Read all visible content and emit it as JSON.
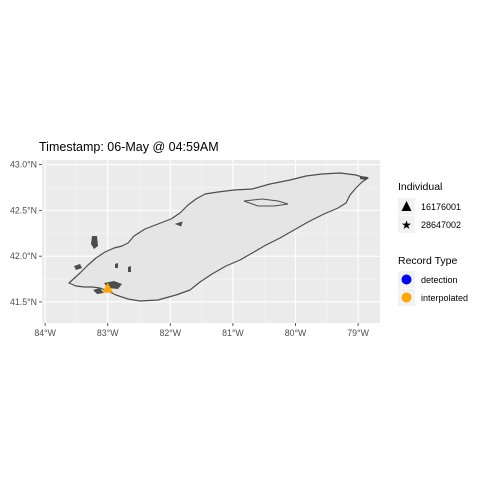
{
  "title": "Timestamp: 06-May @ 04:59AM",
  "chart_data": {
    "type": "map",
    "title": "Timestamp: 06-May @ 04:59AM",
    "xlim": [
      -84.05,
      -78.65
    ],
    "ylim": [
      41.27,
      43.05
    ],
    "x_ticks": [
      {
        "value": -84,
        "label": "84°W"
      },
      {
        "value": -83,
        "label": "83°W"
      },
      {
        "value": -82,
        "label": "82°W"
      },
      {
        "value": -81,
        "label": "81°W"
      },
      {
        "value": -80,
        "label": "80°W"
      },
      {
        "value": -79,
        "label": "79°W"
      }
    ],
    "y_ticks": [
      {
        "value": 43.0,
        "label": "43.0°N"
      },
      {
        "value": 42.5,
        "label": "42.5°N"
      },
      {
        "value": 42.0,
        "label": "42.0°N"
      },
      {
        "value": 41.5,
        "label": "41.5°N"
      }
    ],
    "grid": true,
    "panel_color": "#ebebeb",
    "lake_fill": "#e5e5e5",
    "shoreline_color": "#4d4d4d",
    "points": [
      {
        "lon": -83.0,
        "lat": 41.65,
        "individual": "16176001",
        "record_type": "interpolated",
        "shape": "triangle",
        "color": "#ffa500"
      }
    ],
    "legends": [
      {
        "title": "Individual",
        "items": [
          {
            "label": "16176001",
            "shape": "triangle",
            "color": "#000000"
          },
          {
            "label": "28647002",
            "shape": "star",
            "color": "#000000"
          }
        ]
      },
      {
        "title": "Record Type",
        "items": [
          {
            "label": "detection",
            "shape": "circle",
            "color": "#0000ff"
          },
          {
            "label": "interpolated",
            "shape": "circle",
            "color": "#ffa500"
          }
        ]
      }
    ],
    "legend_position": "right"
  }
}
